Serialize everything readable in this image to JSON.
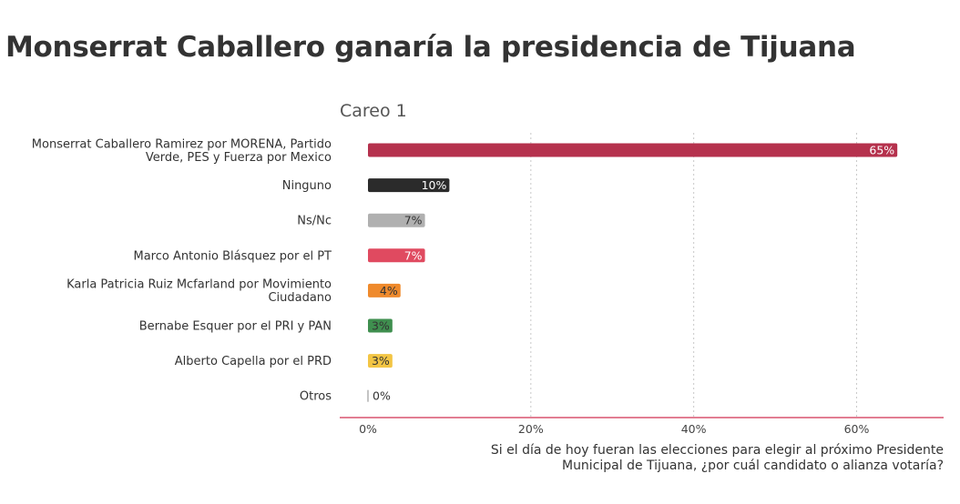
{
  "title": "Monserrat Caballero ganaría la presidencia de Tijuana",
  "chart_data": {
    "type": "bar",
    "orientation": "horizontal",
    "subtitle": "Careo 1",
    "categories": [
      "Monserrat Caballero Ramirez por MORENA, Partido Verde, PES y Fuerza por Mexico",
      "Ninguno",
      "Ns/Nc",
      "Marco Antonio Blásquez por el PT",
      "Karla Patricia Ruiz Mcfarland por Movimiento Ciudadano",
      "Bernabe Esquer por el PRI y PAN",
      "Alberto Capella por el PRD",
      "Otros"
    ],
    "category_lines": [
      [
        "Monserrat Caballero Ramirez por MORENA, Partido",
        "Verde, PES y Fuerza por Mexico"
      ],
      [
        "Ninguno"
      ],
      [
        "Ns/Nc"
      ],
      [
        "Marco Antonio Blásquez por el PT"
      ],
      [
        "Karla Patricia Ruiz Mcfarland por Movimiento",
        "Ciudadano"
      ],
      [
        "Bernabe Esquer por el PRI y PAN"
      ],
      [
        "Alberto Capella por el PRD"
      ],
      [
        "Otros"
      ]
    ],
    "values": [
      65,
      10,
      7,
      7,
      4,
      3,
      3,
      0
    ],
    "value_labels": [
      "65%",
      "10%",
      "7%",
      "7%",
      "4%",
      "3%",
      "3%",
      "0%"
    ],
    "colors": [
      "#b5314d",
      "#2b2b2b",
      "#b0b0b0",
      "#e04a60",
      "#ef8a2c",
      "#3f8f4f",
      "#f3c544",
      "#b0b0b0"
    ],
    "label_colors": [
      "#ffffff",
      "#ffffff",
      "#333333",
      "#ffffff",
      "#333333",
      "#333333",
      "#333333",
      "#333333"
    ],
    "xlim": [
      0,
      68
    ],
    "xticks": [
      0,
      20,
      40,
      60
    ],
    "xtick_labels": [
      "0%",
      "20%",
      "40%",
      "60%"
    ],
    "xlabel_lines": [
      "Si el día de hoy fueran las elecciones para elegir al próximo Presidente",
      "Municipal de Tijuana, ¿por cuál candidato o alianza votaría?"
    ],
    "grid": true,
    "axis_color": "#d9536e",
    "legend": "none"
  }
}
